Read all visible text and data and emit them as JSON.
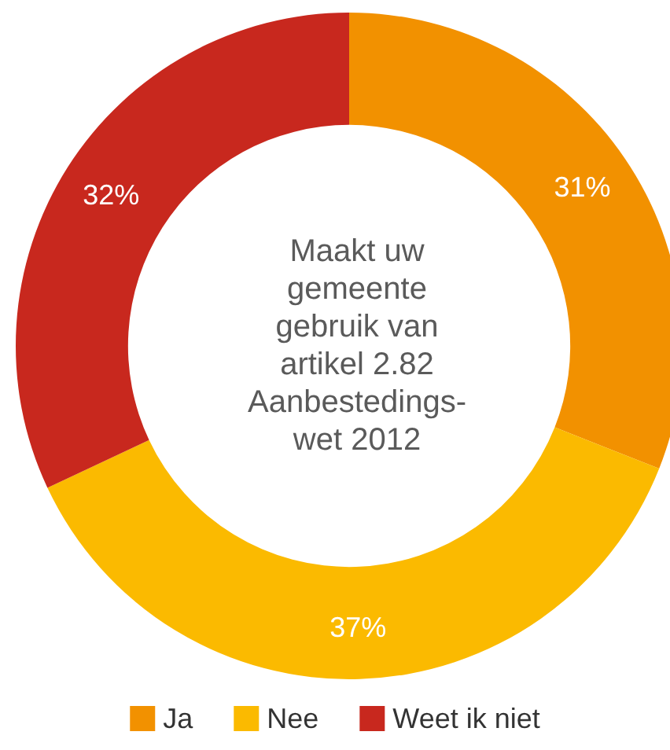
{
  "chart_data": {
    "type": "donut",
    "title": "Maakt uw\ngemeente\ngebruik van\nartikel 2.82\nAanbestedings-\nwet 2012",
    "categories": [
      "Ja",
      "Nee",
      "Weet ik niet"
    ],
    "values": [
      31,
      37,
      32
    ],
    "colors": [
      "#f29100",
      "#fbba00",
      "#c8281e"
    ],
    "value_labels": [
      "31%",
      "37%",
      "32%"
    ],
    "legend": "bottom"
  }
}
